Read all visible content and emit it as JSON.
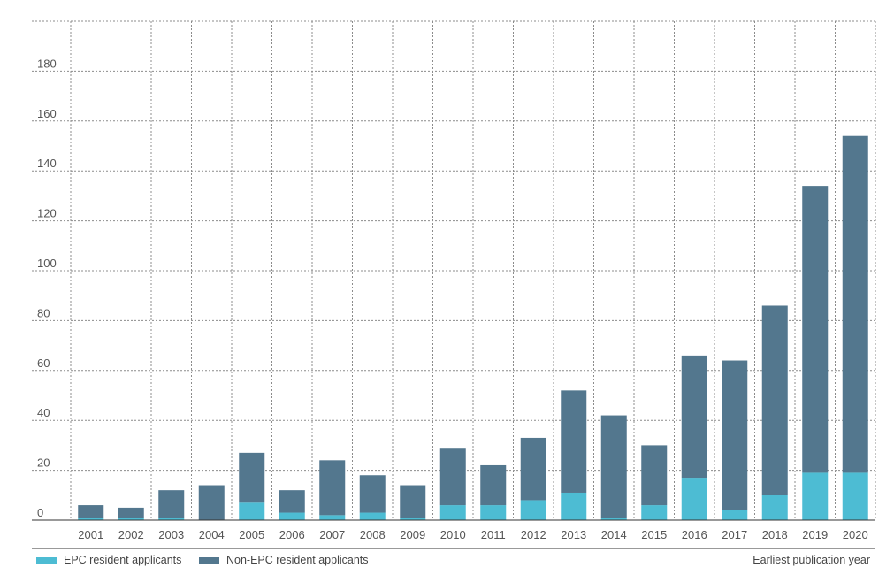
{
  "chart_data": {
    "type": "bar",
    "stacked": true,
    "title": "",
    "xlabel": "Earliest publication year",
    "ylabel": "",
    "ylim": [
      0,
      200
    ],
    "yticks": [
      0,
      20,
      40,
      60,
      80,
      100,
      120,
      140,
      160,
      180
    ],
    "grid": true,
    "legend_position": "bottom-left",
    "categories": [
      "2001",
      "2002",
      "2003",
      "2004",
      "2005",
      "2006",
      "2007",
      "2008",
      "2009",
      "2010",
      "2011",
      "2012",
      "2013",
      "2014",
      "2015",
      "2016",
      "2017",
      "2018",
      "2019",
      "2020"
    ],
    "series": [
      {
        "name": "EPC resident applicants",
        "color": "#4dbcd3",
        "values": [
          1,
          1,
          1,
          0,
          7,
          3,
          2,
          3,
          1,
          6,
          6,
          8,
          11,
          1,
          6,
          17,
          4,
          10,
          19,
          19
        ]
      },
      {
        "name": "Non-EPC resident applicants",
        "color": "#53778e",
        "values": [
          5,
          4,
          11,
          14,
          20,
          9,
          22,
          15,
          13,
          23,
          16,
          25,
          41,
          41,
          24,
          49,
          60,
          76,
          115,
          135
        ]
      }
    ]
  }
}
